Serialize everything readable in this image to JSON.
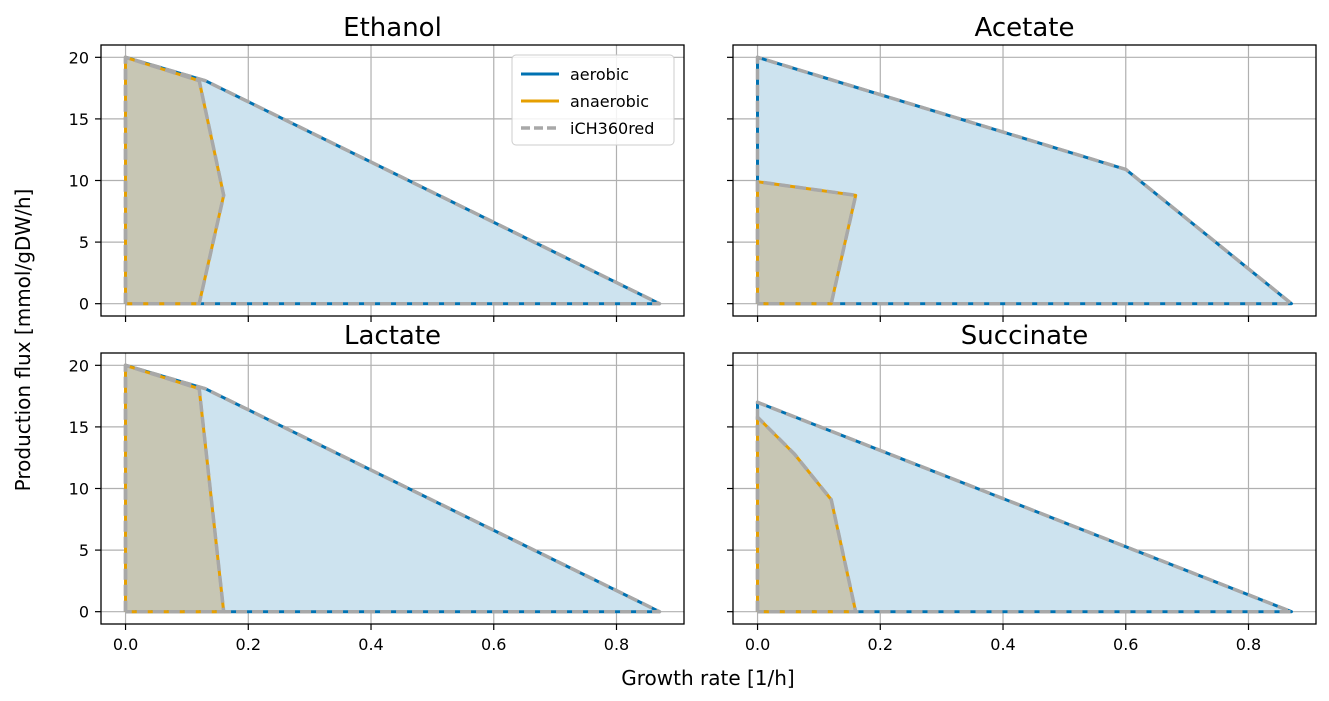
{
  "figure": {
    "xlabel": "Growth rate [1/h]",
    "ylabel": "Production flux [mmol/gDW/h]"
  },
  "legend": {
    "placement": "top-right of first panel",
    "entries": [
      {
        "label": "aerobic",
        "color": "#0072b2",
        "style": "solid"
      },
      {
        "label": "anaerobic",
        "color": "#e69f00",
        "style": "solid"
      },
      {
        "label": "iCH360red",
        "color": "#a8a8a8",
        "style": "dashed"
      }
    ]
  },
  "colors": {
    "aerobic": "#0072b2",
    "aerobic_fill": "#cde3ef",
    "anaerobic": "#e69f00",
    "anaerobic_fill": "#c7c6b4",
    "reduced_model": "#a8a8a8",
    "grid": "#b0b0b0"
  },
  "chart_data": [
    {
      "type": "area",
      "title": "Ethanol",
      "xlim": [
        -0.04,
        0.91
      ],
      "ylim": [
        -1,
        21
      ],
      "xticks": [
        0.0,
        0.2,
        0.4,
        0.6,
        0.8
      ],
      "xtick_labels": [
        "0.0",
        "0.2",
        "0.4",
        "0.6",
        "0.8"
      ],
      "yticks": [
        0,
        5,
        10,
        15,
        20
      ],
      "ytick_labels": [
        "0",
        "5",
        "10",
        "15",
        "20"
      ],
      "grid": true,
      "series": [
        {
          "name": "aerobic",
          "points": [
            [
              0,
              0
            ],
            [
              0,
              20
            ],
            [
              0.13,
              18.1
            ],
            [
              0.87,
              0
            ],
            [
              0,
              0
            ]
          ]
        },
        {
          "name": "anaerobic",
          "points": [
            [
              0,
              0
            ],
            [
              0,
              20
            ],
            [
              0.12,
              18.1
            ],
            [
              0.16,
              8.8
            ],
            [
              0.12,
              0
            ],
            [
              0,
              0
            ]
          ]
        }
      ]
    },
    {
      "type": "area",
      "title": "Acetate",
      "xlim": [
        -0.04,
        0.91
      ],
      "ylim": [
        -1,
        21
      ],
      "xticks": [
        0.0,
        0.2,
        0.4,
        0.6,
        0.8
      ],
      "xtick_labels": [
        "0.0",
        "0.2",
        "0.4",
        "0.6",
        "0.8"
      ],
      "yticks": [
        0,
        5,
        10,
        15,
        20
      ],
      "ytick_labels": [
        "0",
        "5",
        "10",
        "15",
        "20"
      ],
      "grid": true,
      "series": [
        {
          "name": "aerobic",
          "points": [
            [
              0,
              0
            ],
            [
              0,
              20
            ],
            [
              0.6,
              10.9
            ],
            [
              0.87,
              0
            ],
            [
              0,
              0
            ]
          ]
        },
        {
          "name": "anaerobic",
          "points": [
            [
              0,
              0
            ],
            [
              0,
              9.9
            ],
            [
              0.16,
              8.8
            ],
            [
              0.12,
              0
            ],
            [
              0,
              0
            ]
          ]
        }
      ]
    },
    {
      "type": "area",
      "title": "Lactate",
      "xlim": [
        -0.04,
        0.91
      ],
      "ylim": [
        -1,
        21
      ],
      "xticks": [
        0.0,
        0.2,
        0.4,
        0.6,
        0.8
      ],
      "xtick_labels": [
        "0.0",
        "0.2",
        "0.4",
        "0.6",
        "0.8"
      ],
      "yticks": [
        0,
        5,
        10,
        15,
        20
      ],
      "ytick_labels": [
        "0",
        "5",
        "10",
        "15",
        "20"
      ],
      "grid": true,
      "series": [
        {
          "name": "aerobic",
          "points": [
            [
              0,
              0
            ],
            [
              0,
              20
            ],
            [
              0.13,
              18.1
            ],
            [
              0.87,
              0
            ],
            [
              0,
              0
            ]
          ]
        },
        {
          "name": "anaerobic",
          "points": [
            [
              0,
              0
            ],
            [
              0,
              20
            ],
            [
              0.12,
              18.1
            ],
            [
              0.16,
              0
            ],
            [
              0,
              0
            ]
          ]
        }
      ]
    },
    {
      "type": "area",
      "title": "Succinate",
      "xlim": [
        -0.04,
        0.91
      ],
      "ylim": [
        -1,
        21
      ],
      "xticks": [
        0.0,
        0.2,
        0.4,
        0.6,
        0.8
      ],
      "xtick_labels": [
        "0.0",
        "0.2",
        "0.4",
        "0.6",
        "0.8"
      ],
      "yticks": [
        0,
        5,
        10,
        15,
        20
      ],
      "ytick_labels": [
        "0",
        "5",
        "10",
        "15",
        "20"
      ],
      "grid": true,
      "series": [
        {
          "name": "aerobic",
          "points": [
            [
              0,
              0
            ],
            [
              0,
              17
            ],
            [
              0.87,
              0
            ],
            [
              0,
              0
            ]
          ]
        },
        {
          "name": "anaerobic",
          "points": [
            [
              0,
              0
            ],
            [
              0,
              15.8
            ],
            [
              0.06,
              12.8
            ],
            [
              0.12,
              9.1
            ],
            [
              0.16,
              0
            ],
            [
              0,
              0
            ]
          ]
        }
      ]
    }
  ]
}
